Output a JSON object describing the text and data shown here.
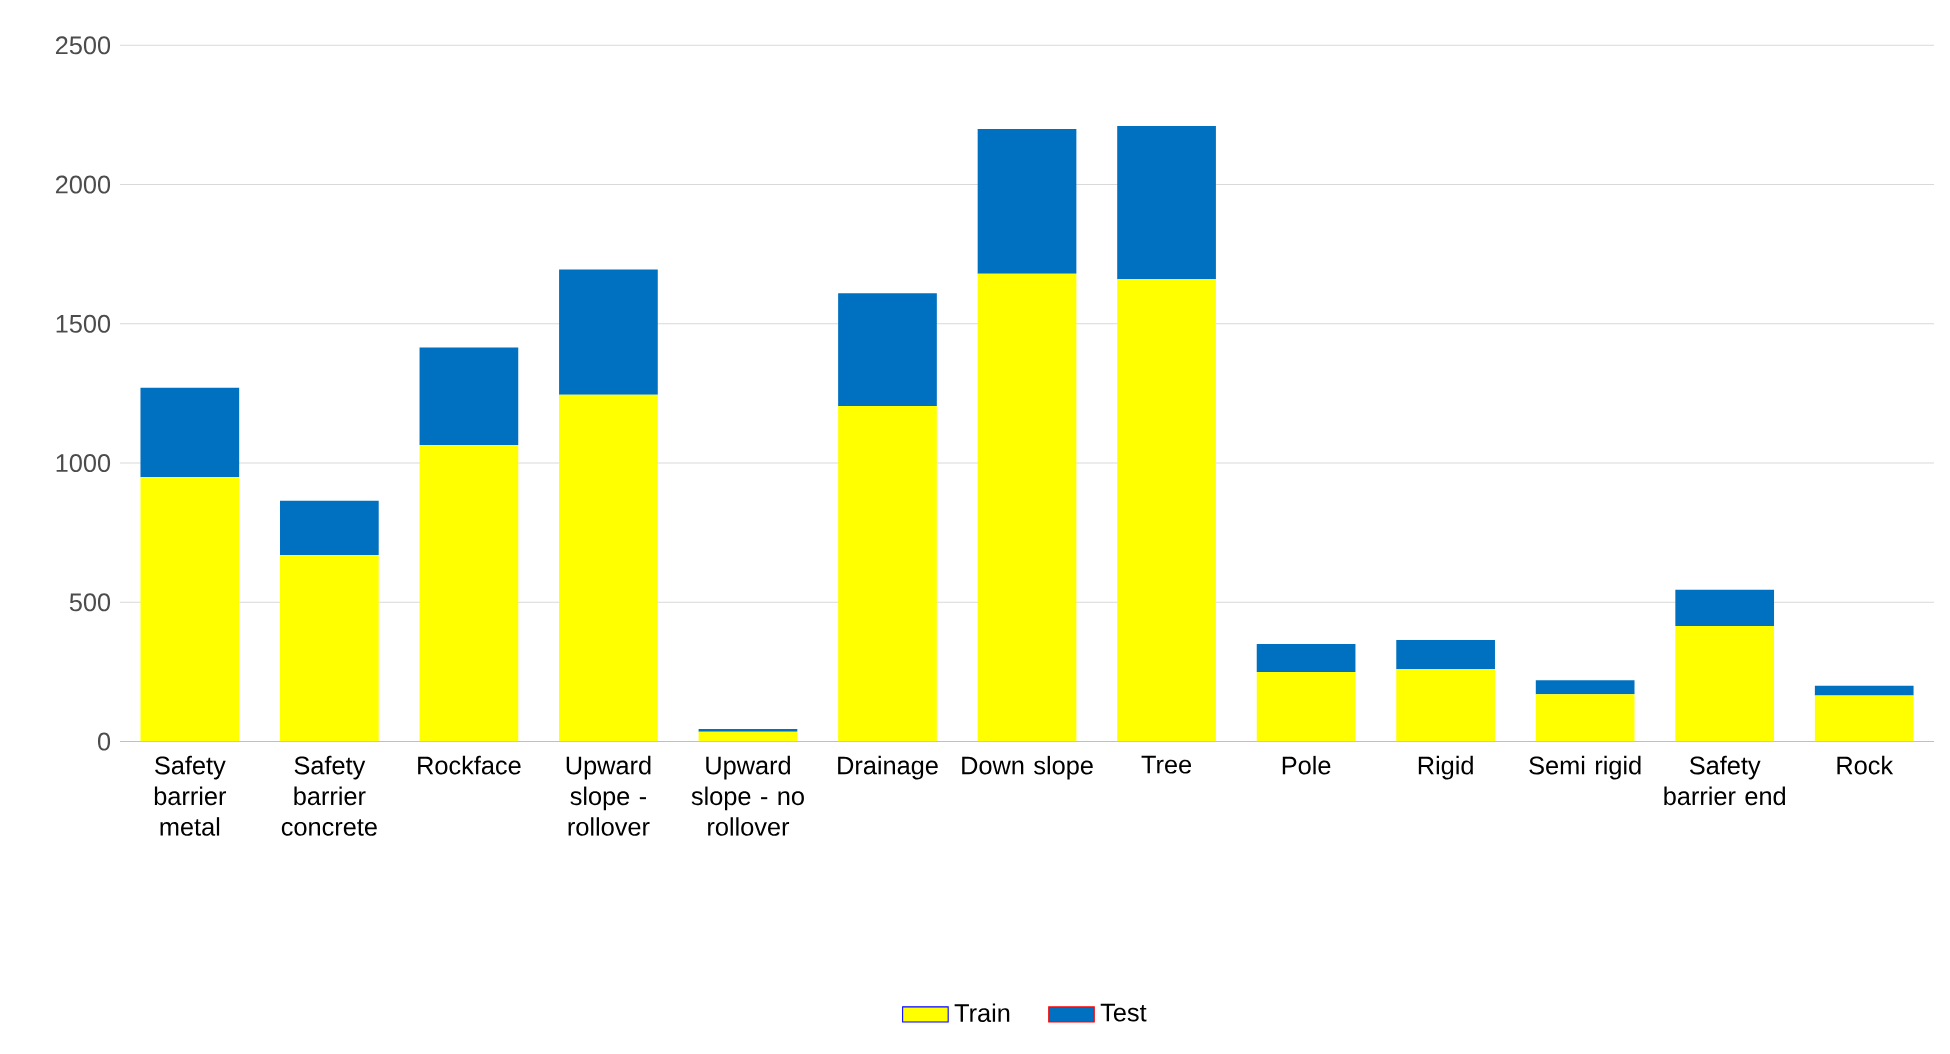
{
  "chart_data": {
    "type": "bar",
    "stacked": true,
    "categories": [
      "Safety barrier metal",
      "Safety barrier concrete",
      "Rockface",
      "Upward slope - rollover",
      "Upward slope - no rollover",
      "Drainage",
      "Down slope",
      "Tree",
      "Pole",
      "Rigid",
      "Semi rigid",
      "Safety barrier end",
      "Rock"
    ],
    "series": [
      {
        "name": "Train",
        "color": "#ffff00",
        "values": [
          950,
          670,
          1065,
          1245,
          35,
          1205,
          1680,
          1660,
          250,
          260,
          170,
          415,
          165
        ]
      },
      {
        "name": "Test",
        "color": "#0070c0",
        "values": [
          320,
          195,
          350,
          450,
          10,
          405,
          520,
          550,
          100,
          105,
          50,
          130,
          35
        ]
      }
    ],
    "ylim": [
      0,
      2500
    ],
    "yticks": [
      0,
      500,
      1000,
      1500,
      2000,
      2500
    ],
    "grid": "y",
    "legend": "bottom"
  }
}
